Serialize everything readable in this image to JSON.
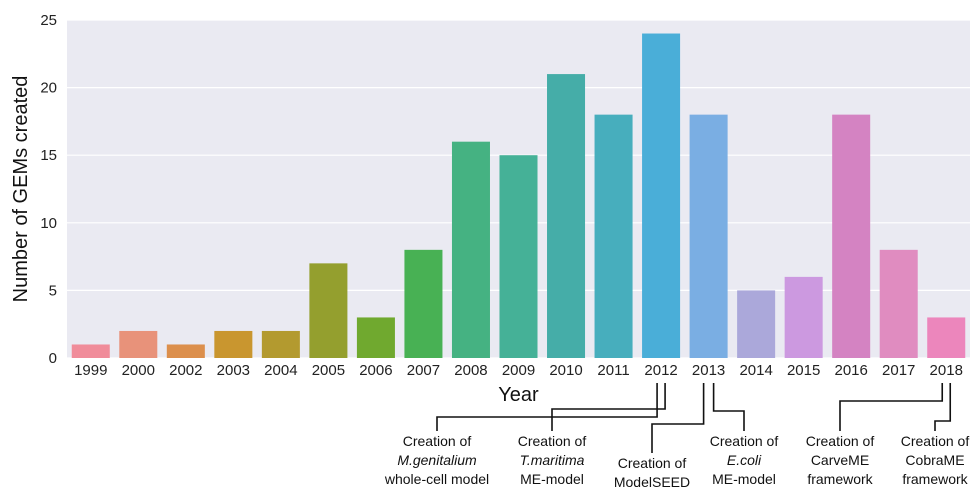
{
  "chart_data": {
    "type": "bar",
    "categories": [
      "1999",
      "2000",
      "2002",
      "2003",
      "2004",
      "2005",
      "2006",
      "2007",
      "2008",
      "2009",
      "2010",
      "2011",
      "2012",
      "2013",
      "2014",
      "2015",
      "2016",
      "2017",
      "2018"
    ],
    "values": [
      1,
      2,
      1,
      2,
      2,
      7,
      3,
      8,
      16,
      15,
      21,
      18,
      24,
      18,
      5,
      6,
      18,
      8,
      3
    ],
    "colors": [
      "#f08c9a",
      "#e8927a",
      "#dc8f4c",
      "#c9962f",
      "#b39a2f",
      "#949f2e",
      "#70a92f",
      "#48b154",
      "#45b282",
      "#45b197",
      "#45ada8",
      "#47aebd",
      "#4aaed8",
      "#7aaee3",
      "#aba8da",
      "#cc99e0",
      "#d483c2",
      "#e08cc0",
      "#ec86bc"
    ],
    "xlabel": "Year",
    "ylabel": "Number of GEMs created",
    "ylim": [
      0,
      25
    ],
    "yticks": [
      0,
      5,
      10,
      15,
      20,
      25
    ],
    "grid": true,
    "background": "#eaeaf2",
    "annotations": [
      {
        "target": "2012",
        "lines": [
          "Creation of",
          "M.genitalium",
          "whole-cell model"
        ],
        "italic_line": 1
      },
      {
        "target": "2012",
        "lines": [
          "Creation of",
          "T.maritima",
          "ME-model"
        ],
        "italic_line": 1
      },
      {
        "target": "2013",
        "lines": [
          "Creation of",
          "ModelSEED"
        ],
        "italic_line": -1
      },
      {
        "target": "2013",
        "lines": [
          "Creation of",
          "E.coli",
          "ME-model"
        ],
        "italic_line": 1
      },
      {
        "target": "2018",
        "lines": [
          "Creation of",
          "CarveME",
          "framework"
        ],
        "italic_line": -1
      },
      {
        "target": "2018",
        "lines": [
          "Creation of",
          "CobraME",
          "framework"
        ],
        "italic_line": -1
      }
    ]
  }
}
